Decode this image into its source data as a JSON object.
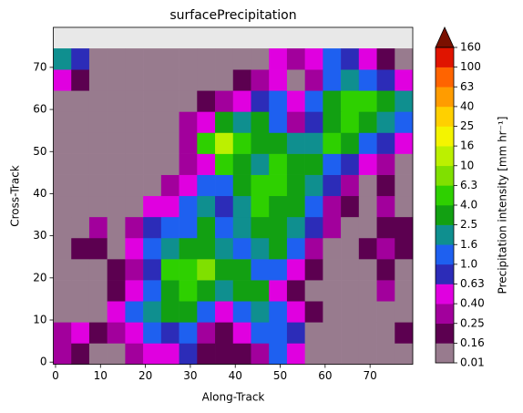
{
  "chart_data": {
    "type": "heatmap",
    "title": "surfacePrecipitation",
    "xlabel": "Along-Track",
    "ylabel": "Cross-Track",
    "xlim": [
      -0.5,
      79.5
    ],
    "ylim": [
      -0.5,
      79.5
    ],
    "xticks": [
      0,
      10,
      20,
      30,
      40,
      50,
      60,
      70
    ],
    "yticks": [
      0,
      10,
      20,
      30,
      40,
      50,
      60,
      70
    ],
    "x_edges": [
      -0.5,
      3.5,
      7.5,
      11.5,
      15.5,
      19.5,
      23.5,
      27.5,
      31.5,
      35.5,
      39.5,
      43.5,
      47.5,
      51.5,
      55.5,
      59.5,
      63.5,
      67.5,
      71.5,
      75.5,
      79.5
    ],
    "y_edges": [
      -0.5,
      4.5,
      9.5,
      14.5,
      19.5,
      24.5,
      29.5,
      34.5,
      39.5,
      44.5,
      49.5,
      54.5,
      59.5,
      64.5,
      69.5,
      74.5
    ],
    "z": [
      [
        0.3,
        0.2,
        0.05,
        0.05,
        0.3,
        0.5,
        0.5,
        0.8,
        0.2,
        0.2,
        0.2,
        0.3,
        1.3,
        0.5,
        0.05,
        0.05,
        0.05,
        0.05,
        0.05,
        0.05
      ],
      [
        0.3,
        0.5,
        0.2,
        0.3,
        0.5,
        1.3,
        0.8,
        1.3,
        0.3,
        0.2,
        0.5,
        1.3,
        1.3,
        0.8,
        0.05,
        0.05,
        0.05,
        0.05,
        0.05,
        0.2
      ],
      [
        0.05,
        0.05,
        0.05,
        0.5,
        1.3,
        2,
        3,
        3,
        1.3,
        0.5,
        1.3,
        2,
        1.3,
        0.5,
        0.2,
        0.05,
        0.05,
        0.05,
        0.05,
        0.05
      ],
      [
        0.05,
        0.05,
        0.05,
        0.2,
        0.5,
        1.3,
        3,
        5,
        3,
        2,
        3,
        3,
        0.5,
        0.2,
        0.05,
        0.05,
        0.05,
        0.05,
        0.3,
        0.05
      ],
      [
        0.05,
        0.05,
        0.05,
        0.2,
        0.3,
        0.8,
        5,
        5,
        8,
        3,
        3,
        1.3,
        1.3,
        0.5,
        0.2,
        0.05,
        0.05,
        0.05,
        0.2,
        0.05
      ],
      [
        0.05,
        0.2,
        0.2,
        0.05,
        0.5,
        1.3,
        2,
        3,
        3,
        2,
        1.3,
        2,
        3,
        1.3,
        0.3,
        0.05,
        0.05,
        0.2,
        0.3,
        0.2
      ],
      [
        0.05,
        0.05,
        0.3,
        0.05,
        0.3,
        0.8,
        1.3,
        1.3,
        3,
        1.3,
        2,
        3,
        3,
        2,
        0.8,
        0.3,
        0.05,
        0.05,
        0.2,
        0.2
      ],
      [
        0.05,
        0.05,
        0.05,
        0.05,
        0.05,
        0.5,
        0.5,
        1.3,
        2,
        0.8,
        2,
        5,
        3,
        3,
        1.3,
        0.3,
        0.2,
        0.05,
        0.3,
        0.05
      ],
      [
        0.05,
        0.05,
        0.05,
        0.05,
        0.05,
        0.05,
        0.3,
        0.5,
        1.3,
        1.3,
        3,
        5,
        5,
        3,
        2,
        0.8,
        0.3,
        0.05,
        0.2,
        0.05
      ],
      [
        0.05,
        0.05,
        0.05,
        0.05,
        0.05,
        0.05,
        0.05,
        0.3,
        0.5,
        5,
        3,
        2,
        5,
        3,
        3,
        1.3,
        0.8,
        0.5,
        0.3,
        0.05
      ],
      [
        0.05,
        0.05,
        0.05,
        0.05,
        0.05,
        0.05,
        0.05,
        0.3,
        5,
        13,
        5,
        3,
        3,
        2,
        2,
        5,
        3,
        1.3,
        0.8,
        0.5
      ],
      [
        0.05,
        0.05,
        0.05,
        0.05,
        0.05,
        0.05,
        0.05,
        0.3,
        0.5,
        3,
        2,
        3,
        1.3,
        0.3,
        0.8,
        3,
        5,
        3,
        2,
        1.3
      ],
      [
        0.05,
        0.05,
        0.05,
        0.05,
        0.05,
        0.05,
        0.05,
        0.05,
        0.2,
        0.3,
        0.5,
        0.8,
        1.3,
        0.5,
        1.3,
        3,
        5,
        5,
        3,
        2
      ],
      [
        0.5,
        0.2,
        0.05,
        0.05,
        0.05,
        0.05,
        0.05,
        0.05,
        0.05,
        0.05,
        0.2,
        0.3,
        0.5,
        0.05,
        0.3,
        1.3,
        2,
        1.3,
        0.8,
        0.5
      ],
      [
        2,
        0.8,
        0.05,
        0.05,
        0.05,
        0.05,
        0.05,
        0.05,
        0.05,
        0.05,
        0.05,
        0.05,
        0.5,
        0.3,
        0.5,
        1.3,
        0.8,
        0.5,
        0.2,
        0.05
      ]
    ],
    "colorbar": {
      "label": "Precipitation intensity [mm hr⁻¹]",
      "levels": [
        0.01,
        0.16,
        0.25,
        {
          "value": 0.4,
          "label": "0.40"
        },
        0.63,
        {
          "value": 1,
          "label": "1.0"
        },
        1.6,
        2.5,
        {
          "value": 4,
          "label": "4.0"
        },
        6.3,
        10,
        16,
        25,
        40,
        63,
        100,
        160
      ],
      "colors": [
        "#987b8e",
        "#5c0050",
        "#a2009c",
        "#e000e0",
        "#2c2cb8",
        "#1e60f0",
        "#0f8f8f",
        "#12a012",
        "#2ed000",
        "#80e000",
        "#bcf000",
        "#f4f400",
        "#ffd000",
        "#ff9c00",
        "#ff6400",
        "#e01400"
      ],
      "extend_color": "#7a1000"
    }
  }
}
